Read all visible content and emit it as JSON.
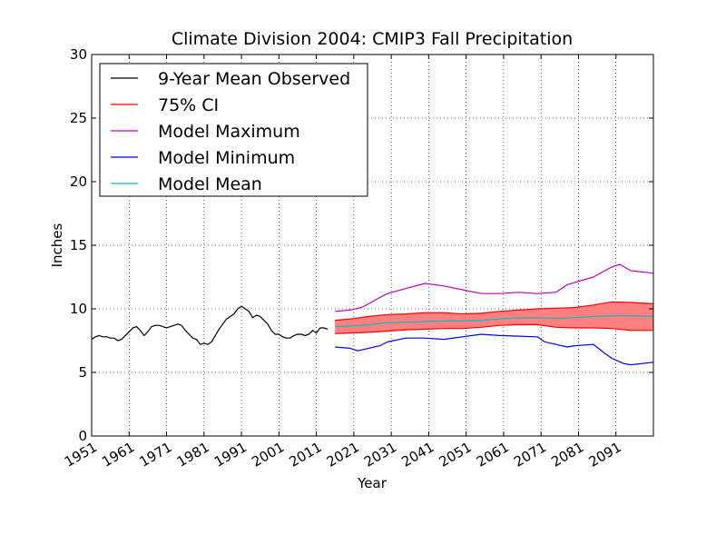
{
  "chart_data": {
    "type": "line",
    "title": "Climate Division 2004: CMIP3 Fall Precipitation",
    "xlabel": "Year",
    "ylabel": "Inches",
    "xlim": [
      1951,
      2101
    ],
    "ylim": [
      0,
      30
    ],
    "xticks": [
      "1951",
      "1961",
      "1971",
      "1981",
      "1991",
      "2001",
      "2011",
      "2021",
      "2031",
      "2041",
      "2051",
      "2061",
      "2071",
      "2081",
      "2091"
    ],
    "yticks": [
      "0",
      "5",
      "10",
      "15",
      "20",
      "25",
      "30"
    ],
    "grid": true,
    "legend_placement": "top-left",
    "colors": {
      "observed": "#000000",
      "ci_line": "#ff0000",
      "ci_fill": "#ff8080",
      "model_max": "#bf00bf",
      "model_min": "#0000ff",
      "model_mean": "#00bfbf"
    },
    "series": [
      {
        "name": "9-Year Mean Observed",
        "x": [
          1951,
          1952,
          1953,
          1954,
          1955,
          1956,
          1957,
          1958,
          1959,
          1960,
          1961,
          1962,
          1963,
          1964,
          1965,
          1966,
          1967,
          1968,
          1969,
          1970,
          1971,
          1972,
          1973,
          1974,
          1975,
          1976,
          1977,
          1978,
          1979,
          1980,
          1981,
          1982,
          1983,
          1984,
          1985,
          1986,
          1987,
          1988,
          1989,
          1990,
          1991,
          1992,
          1993,
          1994,
          1995,
          1996,
          1997,
          1998,
          1999,
          2000,
          2001,
          2002,
          2003,
          2004,
          2005,
          2006,
          2007,
          2008,
          2009,
          2010,
          2011,
          2012,
          2013,
          2014
        ],
        "y": [
          7.6,
          7.8,
          7.9,
          7.8,
          7.8,
          7.7,
          7.7,
          7.5,
          7.6,
          7.9,
          8.2,
          8.5,
          8.6,
          8.3,
          7.9,
          8.2,
          8.6,
          8.7,
          8.7,
          8.6,
          8.5,
          8.6,
          8.7,
          8.8,
          8.7,
          8.3,
          8.0,
          7.7,
          7.6,
          7.2,
          7.3,
          7.2,
          7.4,
          7.9,
          8.4,
          8.8,
          9.2,
          9.4,
          9.6,
          10.0,
          10.2,
          10.0,
          9.8,
          9.3,
          9.5,
          9.4,
          9.1,
          8.8,
          8.3,
          8.0,
          8.0,
          7.8,
          7.7,
          7.7,
          7.9,
          8.0,
          8.0,
          7.9,
          8.0,
          8.3,
          8.1,
          8.5,
          8.5,
          8.4
        ]
      },
      {
        "name": "75% CI",
        "x": [
          2016,
          2020,
          2025,
          2030,
          2035,
          2040,
          2045,
          2050,
          2055,
          2060,
          2065,
          2070,
          2075,
          2080,
          2085,
          2090,
          2095,
          2101
        ],
        "upper": [
          9.1,
          9.2,
          9.4,
          9.55,
          9.6,
          9.7,
          9.7,
          9.6,
          9.65,
          9.8,
          9.9,
          10.0,
          10.05,
          10.1,
          10.3,
          10.55,
          10.5,
          10.4
        ],
        "lower": [
          8.05,
          8.1,
          8.15,
          8.25,
          8.35,
          8.4,
          8.45,
          8.45,
          8.55,
          8.7,
          8.75,
          8.75,
          8.55,
          8.5,
          8.5,
          8.45,
          8.3,
          8.3
        ]
      },
      {
        "name": "Model Maximum",
        "x": [
          2016,
          2020,
          2023,
          2025,
          2028,
          2030,
          2035,
          2040,
          2045,
          2050,
          2055,
          2060,
          2065,
          2070,
          2075,
          2078,
          2085,
          2088,
          2090,
          2092,
          2095,
          2101
        ],
        "y": [
          9.8,
          9.9,
          10.1,
          10.4,
          10.9,
          11.2,
          11.6,
          12.0,
          11.8,
          11.5,
          11.2,
          11.2,
          11.3,
          11.2,
          11.3,
          11.9,
          12.5,
          13.0,
          13.3,
          13.5,
          13.0,
          12.8
        ]
      },
      {
        "name": "Model Minimum",
        "x": [
          2016,
          2020,
          2022,
          2025,
          2028,
          2030,
          2035,
          2040,
          2045,
          2050,
          2055,
          2060,
          2065,
          2070,
          2072,
          2075,
          2078,
          2080,
          2085,
          2088,
          2090,
          2093,
          2095,
          2101
        ],
        "y": [
          7.0,
          6.9,
          6.7,
          6.9,
          7.1,
          7.4,
          7.7,
          7.7,
          7.6,
          7.8,
          8.0,
          7.9,
          7.85,
          7.8,
          7.4,
          7.2,
          7.0,
          7.1,
          7.2,
          6.5,
          6.1,
          5.7,
          5.6,
          5.8
        ]
      },
      {
        "name": "Model Mean",
        "x": [
          2016,
          2020,
          2025,
          2030,
          2035,
          2040,
          2045,
          2050,
          2055,
          2060,
          2065,
          2070,
          2075,
          2080,
          2085,
          2090,
          2095,
          2101
        ],
        "y": [
          8.6,
          8.65,
          8.75,
          8.9,
          8.95,
          9.0,
          9.05,
          9.05,
          9.1,
          9.2,
          9.3,
          9.3,
          9.25,
          9.3,
          9.4,
          9.45,
          9.45,
          9.4
        ]
      }
    ]
  }
}
